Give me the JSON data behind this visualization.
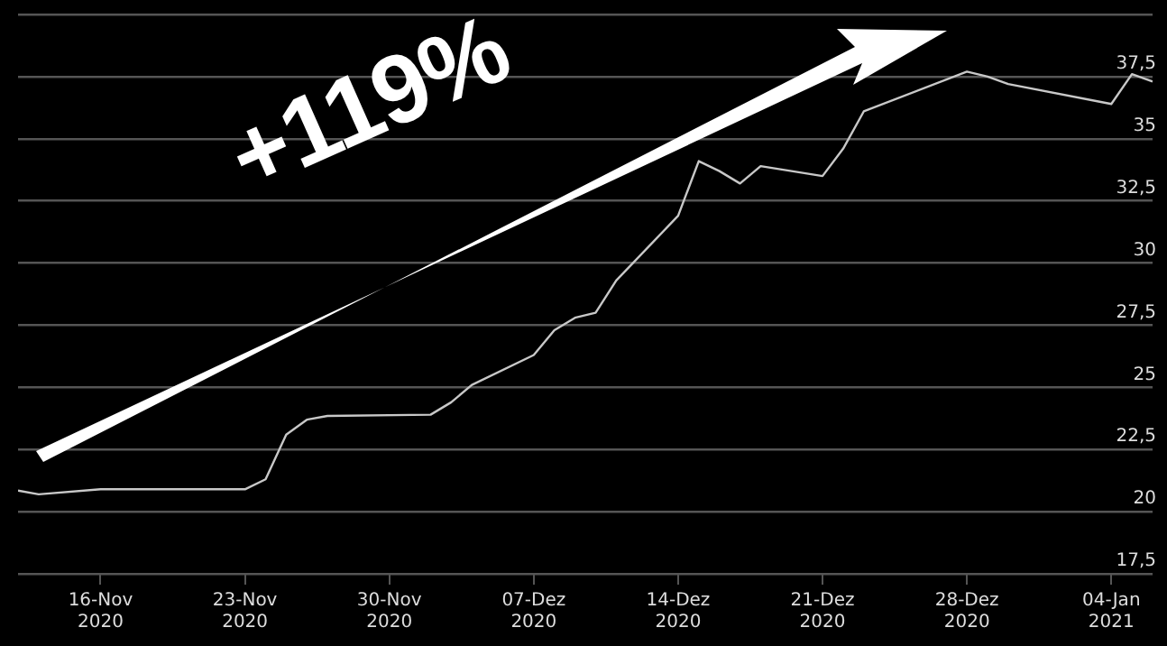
{
  "chart_data": {
    "type": "line",
    "annotations": [
      "+119%"
    ],
    "x": [
      "2020-11-12",
      "2020-11-13",
      "2020-11-16",
      "2020-11-23",
      "2020-11-24",
      "2020-11-25",
      "2020-11-26",
      "2020-11-27",
      "2020-12-02",
      "2020-12-03",
      "2020-12-04",
      "2020-12-07",
      "2020-12-08",
      "2020-12-09",
      "2020-12-10",
      "2020-12-11",
      "2020-12-14",
      "2020-12-15",
      "2020-12-16",
      "2020-12-17",
      "2020-12-18",
      "2020-12-21",
      "2020-12-22",
      "2020-12-23",
      "2020-12-28",
      "2020-12-29",
      "2020-12-30",
      "2021-01-04",
      "2021-01-05",
      "2021-01-06"
    ],
    "series": [
      {
        "color": "#c8c8c8",
        "values": [
          20.85,
          20.7,
          20.9,
          20.9,
          21.3,
          23.1,
          23.7,
          23.85,
          23.9,
          24.4,
          25.1,
          26.3,
          27.3,
          27.8,
          28.0,
          29.3,
          31.9,
          34.1,
          33.7,
          33.2,
          33.9,
          33.5,
          34.6,
          36.1,
          37.7,
          37.5,
          37.2,
          36.4,
          37.6,
          37.3
        ]
      }
    ],
    "xlim": [
      "2020-11-12",
      "2021-01-06"
    ],
    "xticks": [
      {
        "value": "2020-11-16",
        "label": "16-Nov 2020"
      },
      {
        "value": "2020-11-23",
        "label": "23-Nov 2020"
      },
      {
        "value": "2020-11-30",
        "label": "30-Nov 2020"
      },
      {
        "value": "2020-12-07",
        "label": "07-Dez 2020"
      },
      {
        "value": "2020-12-14",
        "label": "14-Dez 2020"
      },
      {
        "value": "2020-12-21",
        "label": "21-Dez 2020"
      },
      {
        "value": "2020-12-28",
        "label": "28-Dez 2020"
      },
      {
        "value": "2021-01-04",
        "label": "04-Jan 2021"
      }
    ],
    "ylim": [
      17.5,
      40
    ],
    "yticks": [
      {
        "value": 17.5,
        "label": "17,5"
      },
      20,
      {
        "value": 22.5,
        "label": "22,5"
      },
      25,
      {
        "value": 27.5,
        "label": "27,5"
      },
      30,
      {
        "value": 32.5,
        "label": "32,5"
      },
      35,
      {
        "value": 37.5,
        "label": "37,5"
      },
      {
        "value": 40,
        "label": null
      }
    ],
    "grid": "y",
    "legend": false,
    "marker": "none",
    "line_style": "solid"
  }
}
